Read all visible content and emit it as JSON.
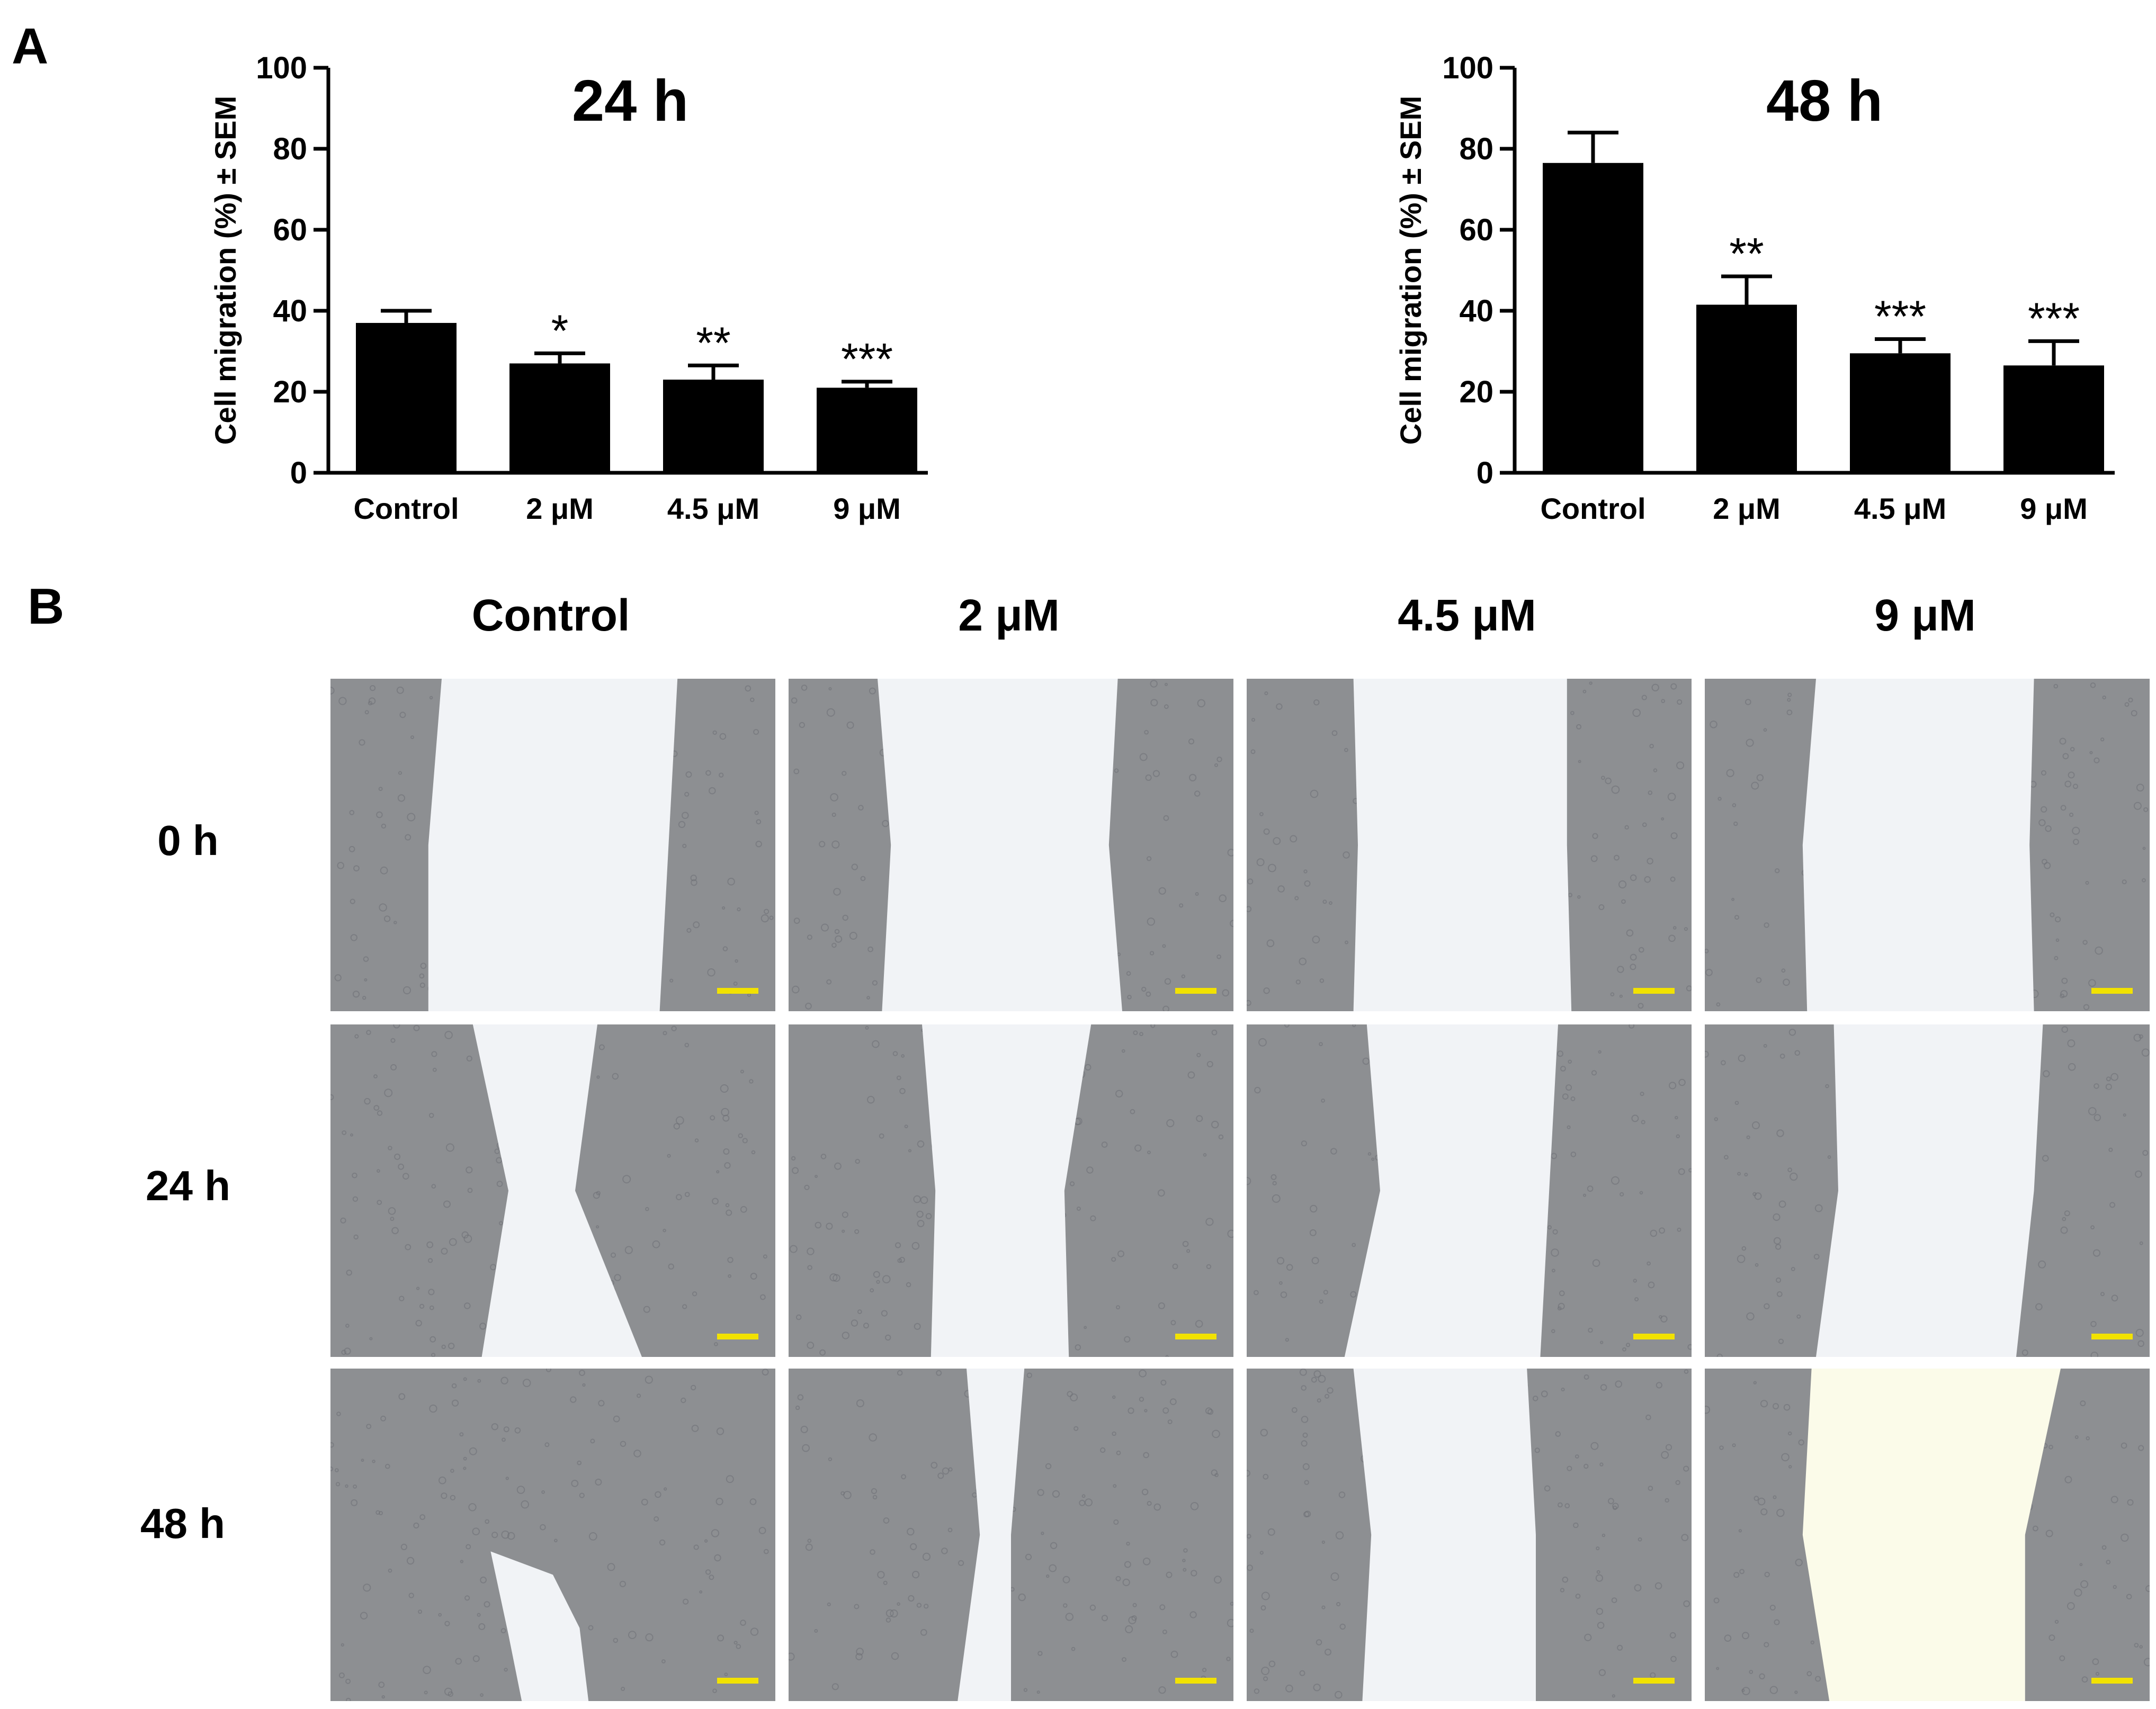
{
  "panel_a_label": "A",
  "panel_b_label": "B",
  "chart_data": [
    {
      "type": "bar",
      "title": "24 h",
      "ylabel": "Cell migration (%) ± SEM",
      "xlabel": "",
      "ylim": [
        0,
        100
      ],
      "yticks": [
        "0",
        "20",
        "40",
        "60",
        "80",
        "100"
      ],
      "categories": [
        "Control",
        "2 μM",
        "4.5 μM",
        "9 μM"
      ],
      "values": [
        37,
        27,
        23,
        21
      ],
      "errors": [
        3,
        2.5,
        3.5,
        1.5
      ],
      "significance": [
        "",
        "*",
        "**",
        "***"
      ],
      "bar_color": "#000000"
    },
    {
      "type": "bar",
      "title": "48 h",
      "ylabel": "Cell migration (%) ± SEM",
      "xlabel": "",
      "ylim": [
        0,
        100
      ],
      "yticks": [
        "0",
        "20",
        "40",
        "60",
        "80",
        "100"
      ],
      "categories": [
        "Control",
        "2 μM",
        "4.5 μM",
        "9 μM"
      ],
      "values": [
        76.5,
        41.5,
        29.5,
        26.5
      ],
      "errors": [
        7.5,
        7,
        3.5,
        6
      ],
      "significance": [
        "",
        "**",
        "***",
        "***"
      ],
      "bar_color": "#000000"
    }
  ],
  "panel_b": {
    "columns": [
      "Control",
      "2 μM",
      "4.5 μM",
      "9 μM"
    ],
    "rows": [
      "0 h",
      "24 h",
      "48 h"
    ],
    "scale_bar_color": "#f2e200",
    "cell_color": "#8d8f92",
    "gap_color": "#f1f3f6"
  }
}
